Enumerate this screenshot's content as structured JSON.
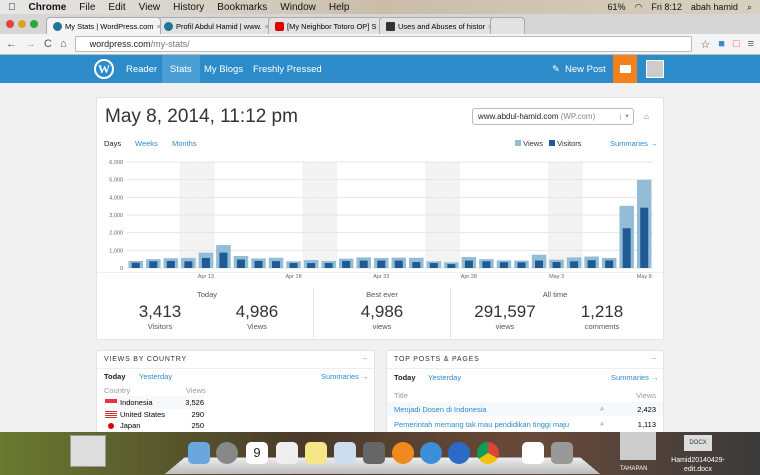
{
  "menubar": {
    "app": "Chrome",
    "items": [
      "File",
      "Edit",
      "View",
      "History",
      "Bookmarks",
      "Window",
      "Help"
    ],
    "battery": "61%",
    "clock": "Fri 8:12",
    "user": "abah hamid"
  },
  "tabs": [
    {
      "title": "My Stats | WordPress.com"
    },
    {
      "title": "Profil Abdul Hamid | www."
    },
    {
      "title": "[My Neighbor Totoro OP] S"
    },
    {
      "title": "Uses and Abuses of histor"
    }
  ],
  "address": {
    "host": "wordpress.com",
    "path": "/my-stats/"
  },
  "nav": {
    "items": [
      "Reader",
      "Stats",
      "My Blogs",
      "Freshly Pressed"
    ],
    "active": "Stats",
    "new_post": "New Post"
  },
  "stats": {
    "date": "May 8, 2014, 11:12 pm",
    "site": "www.abdul-hamid.com",
    "site_suffix": "(WP.com)",
    "periods": [
      "Days",
      "Weeks",
      "Months"
    ],
    "legend_views": "Views",
    "legend_visitors": "Visitors",
    "summaries": "Summaries →",
    "today_label": "Today",
    "today_visitors": "3,413",
    "today_visitors_label": "Visitors",
    "today_views": "4,986",
    "today_views_label": "Views",
    "best_label": "Best ever",
    "best_views": "4,986",
    "best_views_label": "views",
    "all_label": "All time",
    "all_views": "291,597",
    "all_views_label": "views",
    "all_comments": "1,218",
    "all_comments_label": "comments"
  },
  "colors": {
    "views": "#93bcd6",
    "visitors": "#1f5a92",
    "brand": "#2e8bc9",
    "accent": "#f0821e"
  },
  "chart_data": {
    "type": "bar",
    "title": "",
    "xlabel": "",
    "ylabel": "",
    "ylim": [
      0,
      6000
    ],
    "yticks": [
      "0",
      "1,000",
      "2,000",
      "3,000",
      "4,000",
      "5,000",
      "6,000"
    ],
    "categories": [
      "Apr 9",
      "Apr 10",
      "Apr 11",
      "Apr 12",
      "Apr 13",
      "Apr 14",
      "Apr 15",
      "Apr 16",
      "Apr 17",
      "Apr 18",
      "Apr 19",
      "Apr 20",
      "Apr 21",
      "Apr 22",
      "Apr 23",
      "Apr 24",
      "Apr 25",
      "Apr 26",
      "Apr 27",
      "Apr 28",
      "Apr 29",
      "Apr 30",
      "May 1",
      "May 2",
      "May 3",
      "May 4",
      "May 5",
      "May 6",
      "May 7",
      "May 8"
    ],
    "xtick_labels": [
      "Apr 13",
      "Apr 18",
      "Apr 23",
      "Apr 28",
      "May 3",
      "May 8"
    ],
    "weekend_indices": [
      3,
      4,
      10,
      11,
      17,
      18,
      24,
      25
    ],
    "series": [
      {
        "name": "Views",
        "values": [
          400,
          500,
          550,
          570,
          870,
          1300,
          680,
          540,
          580,
          380,
          450,
          400,
          530,
          600,
          570,
          590,
          580,
          380,
          320,
          620,
          500,
          430,
          420,
          750,
          470,
          600,
          650,
          570,
          3520,
          4986
        ]
      },
      {
        "name": "Visitors",
        "values": [
          300,
          380,
          400,
          380,
          570,
          870,
          480,
          400,
          390,
          280,
          280,
          280,
          400,
          420,
          420,
          420,
          340,
          280,
          220,
          420,
          380,
          330,
          320,
          420,
          340,
          380,
          440,
          430,
          2250,
          3413
        ]
      }
    ]
  },
  "country": {
    "title": "VIEWS BY COUNTRY",
    "today": "Today",
    "yesterday": "Yesterday",
    "summaries": "Summaries →",
    "col_country": "Country",
    "col_views": "Views",
    "rows": [
      {
        "name": "Indonesia",
        "views": "3,526"
      },
      {
        "name": "United States",
        "views": "290"
      },
      {
        "name": "Japan",
        "views": "250"
      }
    ]
  },
  "posts": {
    "title": "TOP POSTS & PAGES",
    "today": "Today",
    "yesterday": "Yesterday",
    "summaries": "Summaries →",
    "col_title": "Title",
    "col_views": "Views",
    "rows": [
      {
        "title": "Menjadi Dosen di Indonesia",
        "views": "2,423"
      },
      {
        "title": "Pemerintah memang tak mau pendidikan tinggi maju",
        "views": "1,113"
      }
    ]
  },
  "desktop": {
    "file1": "Hamid20140429-edit.docx",
    "file1_badge": "DOCX",
    "file2": "TAHAPAN"
  }
}
